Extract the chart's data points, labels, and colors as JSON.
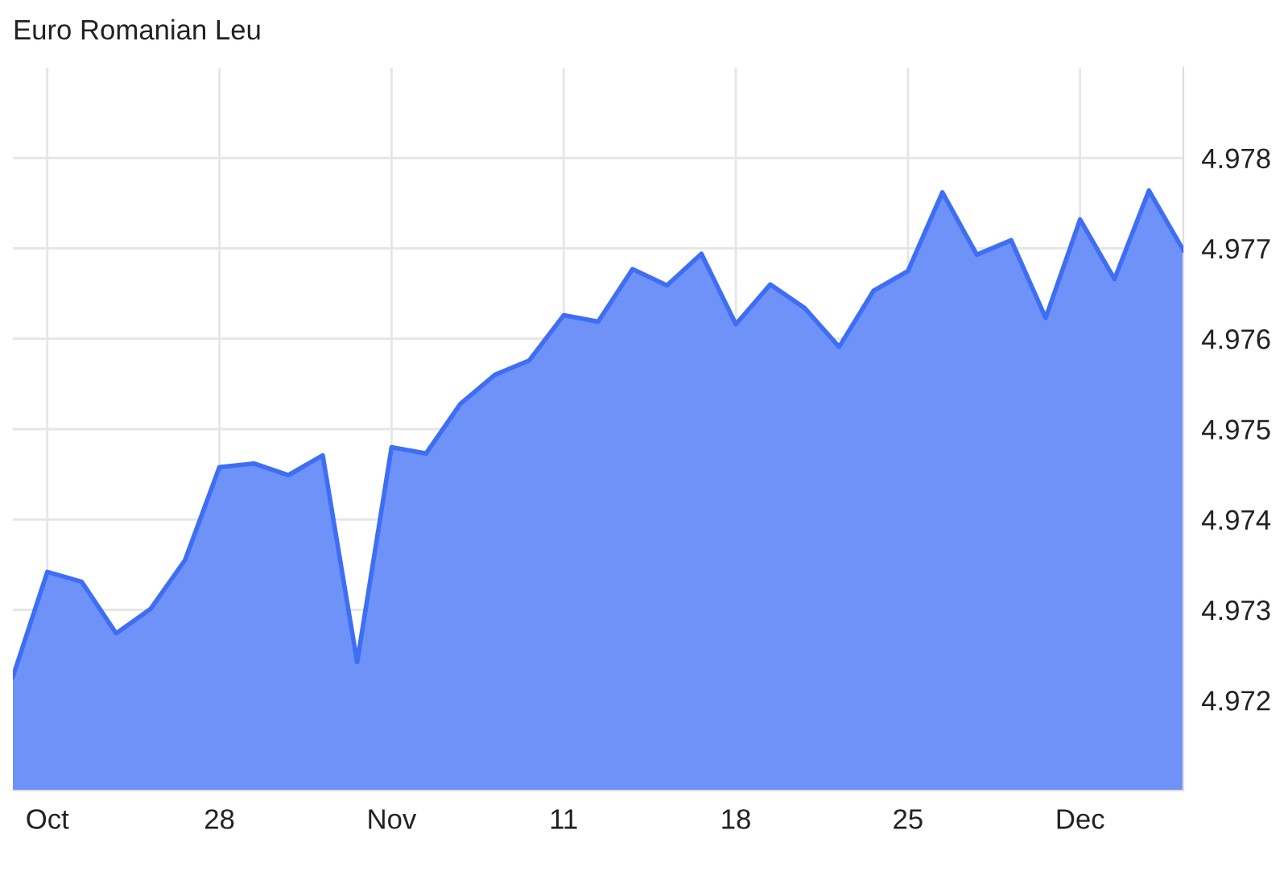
{
  "chart_data": {
    "type": "area",
    "title": "Euro Romanian Leu",
    "categories": [
      null,
      "Oct",
      null,
      null,
      null,
      null,
      "28",
      null,
      null,
      null,
      null,
      "Nov",
      null,
      null,
      null,
      null,
      "11",
      null,
      null,
      null,
      null,
      "18",
      null,
      null,
      null,
      null,
      "25",
      null,
      null,
      null,
      null,
      "Dec",
      null,
      null,
      null
    ],
    "series": [
      {
        "color": "#3d6ef5",
        "values": [
          4.97226,
          4.97342,
          4.97331,
          4.97274,
          4.97301,
          4.97355,
          4.97458,
          4.97462,
          4.97449,
          4.97471,
          4.97242,
          4.9748,
          4.97473,
          4.97528,
          4.9756,
          4.97576,
          4.97626,
          4.97619,
          4.97677,
          4.97659,
          4.97694,
          4.97616,
          4.9766,
          4.97634,
          4.97591,
          4.97653,
          4.97675,
          4.97762,
          4.97693,
          4.97709,
          4.97623,
          4.97732,
          4.97666,
          4.97764,
          4.97698
        ]
      }
    ],
    "ylim": [
      4.971,
      4.979
    ],
    "yticks": [
      4.972,
      4.973,
      4.974,
      4.975,
      4.976,
      4.977,
      4.978
    ],
    "grid": true
  }
}
